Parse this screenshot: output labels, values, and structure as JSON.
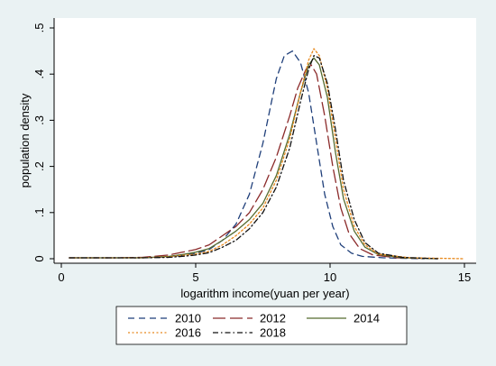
{
  "chart_data": {
    "type": "line",
    "title": "",
    "xlabel": "logarithm income(yuan per year)",
    "ylabel": "population density",
    "xlim": [
      0,
      15
    ],
    "ylim": [
      0,
      0.5
    ],
    "x_ticks": [
      "0",
      "5",
      "10",
      "15"
    ],
    "y_ticks": [
      "0",
      ".1",
      ".2",
      ".3",
      ".4",
      ".5"
    ],
    "grid": false,
    "legend_position": "bottom",
    "series": [
      {
        "name": "2010",
        "color": "#1f3f7a",
        "dash": "dashed",
        "x": [
          0.3,
          2,
          3,
          4,
          4.5,
          5,
          5.5,
          6,
          6.5,
          7,
          7.5,
          8,
          8.3,
          8.6,
          8.9,
          9.2,
          9.5,
          9.8,
          10.1,
          10.4,
          10.8,
          11.2,
          12,
          13.5
        ],
        "y": [
          0.002,
          0.002,
          0.002,
          0.004,
          0.007,
          0.012,
          0.02,
          0.04,
          0.075,
          0.14,
          0.25,
          0.39,
          0.44,
          0.45,
          0.425,
          0.36,
          0.25,
          0.14,
          0.07,
          0.03,
          0.012,
          0.005,
          0.002,
          0
        ]
      },
      {
        "name": "2012",
        "color": "#8b2a2a",
        "dash": "longdash",
        "x": [
          0.3,
          2,
          3,
          4,
          4.5,
          5,
          5.5,
          6,
          6.5,
          7,
          7.5,
          8,
          8.5,
          8.8,
          9.1,
          9.3,
          9.5,
          9.8,
          10.1,
          10.4,
          10.7,
          11.1,
          11.6,
          12.5,
          14
        ],
        "y": [
          0.002,
          0.002,
          0.003,
          0.008,
          0.014,
          0.02,
          0.03,
          0.05,
          0.07,
          0.1,
          0.15,
          0.22,
          0.31,
          0.37,
          0.41,
          0.42,
          0.4,
          0.31,
          0.2,
          0.11,
          0.055,
          0.022,
          0.008,
          0.002,
          0
        ]
      },
      {
        "name": "2014",
        "color": "#556b2f",
        "dash": "solid",
        "x": [
          0.3,
          2,
          3,
          4,
          4.5,
          5,
          5.5,
          6,
          6.5,
          7,
          7.5,
          8,
          8.5,
          8.9,
          9.2,
          9.4,
          9.6,
          9.9,
          10.2,
          10.5,
          10.9,
          11.3,
          11.8,
          12.7,
          14
        ],
        "y": [
          0.002,
          0.002,
          0.002,
          0.005,
          0.009,
          0.014,
          0.022,
          0.04,
          0.06,
          0.085,
          0.12,
          0.18,
          0.27,
          0.36,
          0.42,
          0.435,
          0.42,
          0.35,
          0.23,
          0.13,
          0.06,
          0.025,
          0.009,
          0.002,
          0
        ]
      },
      {
        "name": "2016",
        "color": "#e8891d",
        "dash": "dotted",
        "x": [
          0.3,
          2,
          3,
          4,
          4.5,
          5,
          5.5,
          6,
          6.5,
          7,
          7.5,
          8,
          8.5,
          8.9,
          9.2,
          9.4,
          9.6,
          9.9,
          10.2,
          10.5,
          10.9,
          11.3,
          11.8,
          13,
          15
        ],
        "y": [
          0.002,
          0.002,
          0.002,
          0.004,
          0.007,
          0.01,
          0.016,
          0.03,
          0.05,
          0.075,
          0.11,
          0.17,
          0.26,
          0.36,
          0.43,
          0.455,
          0.44,
          0.37,
          0.26,
          0.15,
          0.07,
          0.03,
          0.01,
          0.002,
          0
        ]
      },
      {
        "name": "2018",
        "color": "#111111",
        "dash": "dashdot",
        "x": [
          0.3,
          2,
          3,
          4,
          4.5,
          5,
          5.5,
          6,
          6.5,
          7,
          7.5,
          8,
          8.5,
          8.9,
          9.2,
          9.4,
          9.6,
          9.9,
          10.2,
          10.5,
          10.9,
          11.3,
          11.8,
          12.7,
          14
        ],
        "y": [
          0.002,
          0.002,
          0.002,
          0.003,
          0.005,
          0.008,
          0.013,
          0.025,
          0.04,
          0.065,
          0.1,
          0.155,
          0.24,
          0.34,
          0.41,
          0.44,
          0.435,
          0.38,
          0.28,
          0.17,
          0.085,
          0.035,
          0.012,
          0.003,
          0
        ]
      }
    ]
  }
}
